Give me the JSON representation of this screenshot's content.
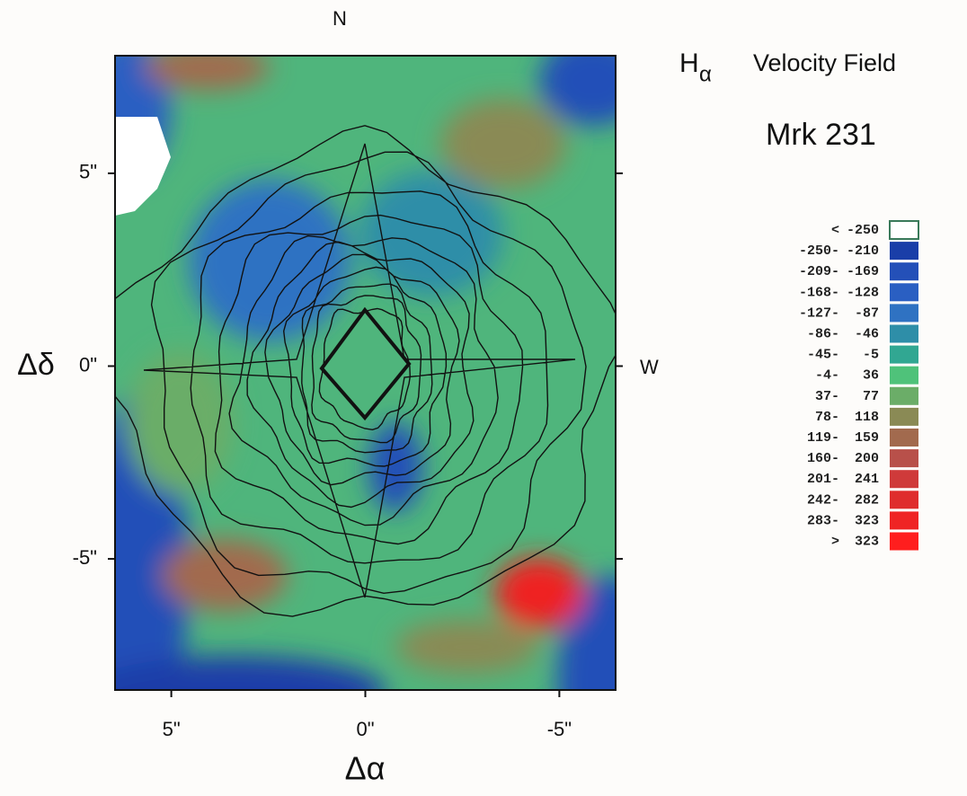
{
  "chart_data": {
    "type": "velocity-map",
    "title_symbol": "H",
    "title_subscript": "α",
    "title": "Velocity Field",
    "subtitle": "Mrk 231",
    "north_label": "N",
    "west_label": "W",
    "xlabel": "Δα",
    "ylabel": "Δδ",
    "xlim": [
      6.45,
      -6.45
    ],
    "ylim": [
      -8.4,
      8.05
    ],
    "xticks": [
      {
        "value": 5,
        "label": "5\""
      },
      {
        "value": 0,
        "label": "0\""
      },
      {
        "value": -5,
        "label": "-5\""
      }
    ],
    "yticks": [
      {
        "value": 5,
        "label": "5\""
      },
      {
        "value": 0,
        "label": "0\""
      },
      {
        "value": -5,
        "label": "-5\""
      }
    ],
    "legend": [
      {
        "from": "<",
        "to": "-250",
        "color": "#ffffff"
      },
      {
        "from": "-250-",
        "to": "-210",
        "color": "#1a3ea8"
      },
      {
        "from": "-209-",
        "to": "-169",
        "color": "#2450b8"
      },
      {
        "from": "-168-",
        "to": "-128",
        "color": "#2a5fc2"
      },
      {
        "from": "-127-",
        "to": "-87",
        "color": "#2f72c2"
      },
      {
        "from": "-86-",
        "to": "-46",
        "color": "#2e8ea8"
      },
      {
        "from": "-45-",
        "to": "-5",
        "color": "#31a792"
      },
      {
        "from": "-4-",
        "to": "36",
        "color": "#4fc27a"
      },
      {
        "from": "37-",
        "to": "77",
        "color": "#6bad68"
      },
      {
        "from": "78-",
        "to": "118",
        "color": "#8a8a55"
      },
      {
        "from": "119-",
        "to": "159",
        "color": "#a26a4e"
      },
      {
        "from": "160-",
        "to": "200",
        "color": "#b8504a"
      },
      {
        "from": "201-",
        "to": "241",
        "color": "#cf3a3a"
      },
      {
        "from": "242-",
        "to": "282",
        "color": "#df2d2d"
      },
      {
        "from": "283-",
        "to": "323",
        "color": "#ef2424"
      },
      {
        "from": ">",
        "to": "323",
        "color": "#ff1e1e"
      }
    ]
  }
}
